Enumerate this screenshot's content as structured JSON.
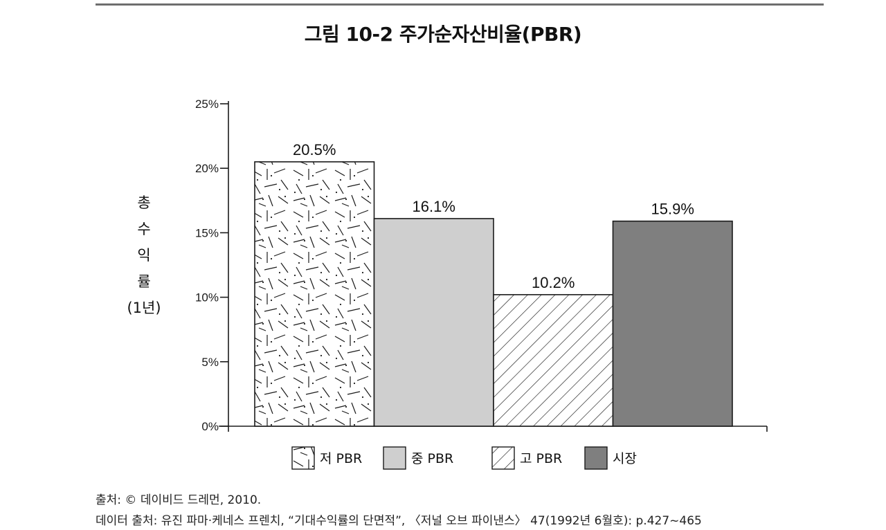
{
  "figure": {
    "title": "그림 10-2  주가순자산비율(PBR)"
  },
  "chart_data": {
    "type": "bar",
    "categories": [
      "저 PBR",
      "중 PBR",
      "고 PBR",
      "시장"
    ],
    "values": [
      20.5,
      16.1,
      10.2,
      15.9
    ],
    "data_labels": [
      "20.5%",
      "16.1%",
      "10.2%",
      "15.9%"
    ],
    "legend": [
      "저 PBR",
      "중 PBR",
      "고 PBR",
      "시장"
    ],
    "legend_position": "bottom",
    "ylabel_lines": [
      "총",
      "수",
      "익",
      "률",
      "(1년)"
    ],
    "yticks": [
      0,
      5,
      10,
      15,
      20,
      25
    ],
    "ytick_labels": [
      "0%",
      "5%",
      "10%",
      "15%",
      "20%",
      "25%"
    ],
    "ylim": [
      0,
      25
    ],
    "grid": false,
    "colors": {
      "low": "#ffffff",
      "mid": "#cfcfcf",
      "high": "#ffffff",
      "market": "#7f7f7f",
      "stroke": "#1a1a1a"
    },
    "fills": [
      "random-dash-pattern",
      "solid-light-gray",
      "diagonal-hatch",
      "solid-dark-gray"
    ]
  },
  "source": {
    "line1": "출처: © 데이비드 드레먼, 2010.",
    "line2": "데이터 출처: 유진 파마·케네스 프렌치, “기대수익률의 단면적”, 〈저널 오브 파이낸스〉 47(1992년 6월호): p.427~465"
  }
}
